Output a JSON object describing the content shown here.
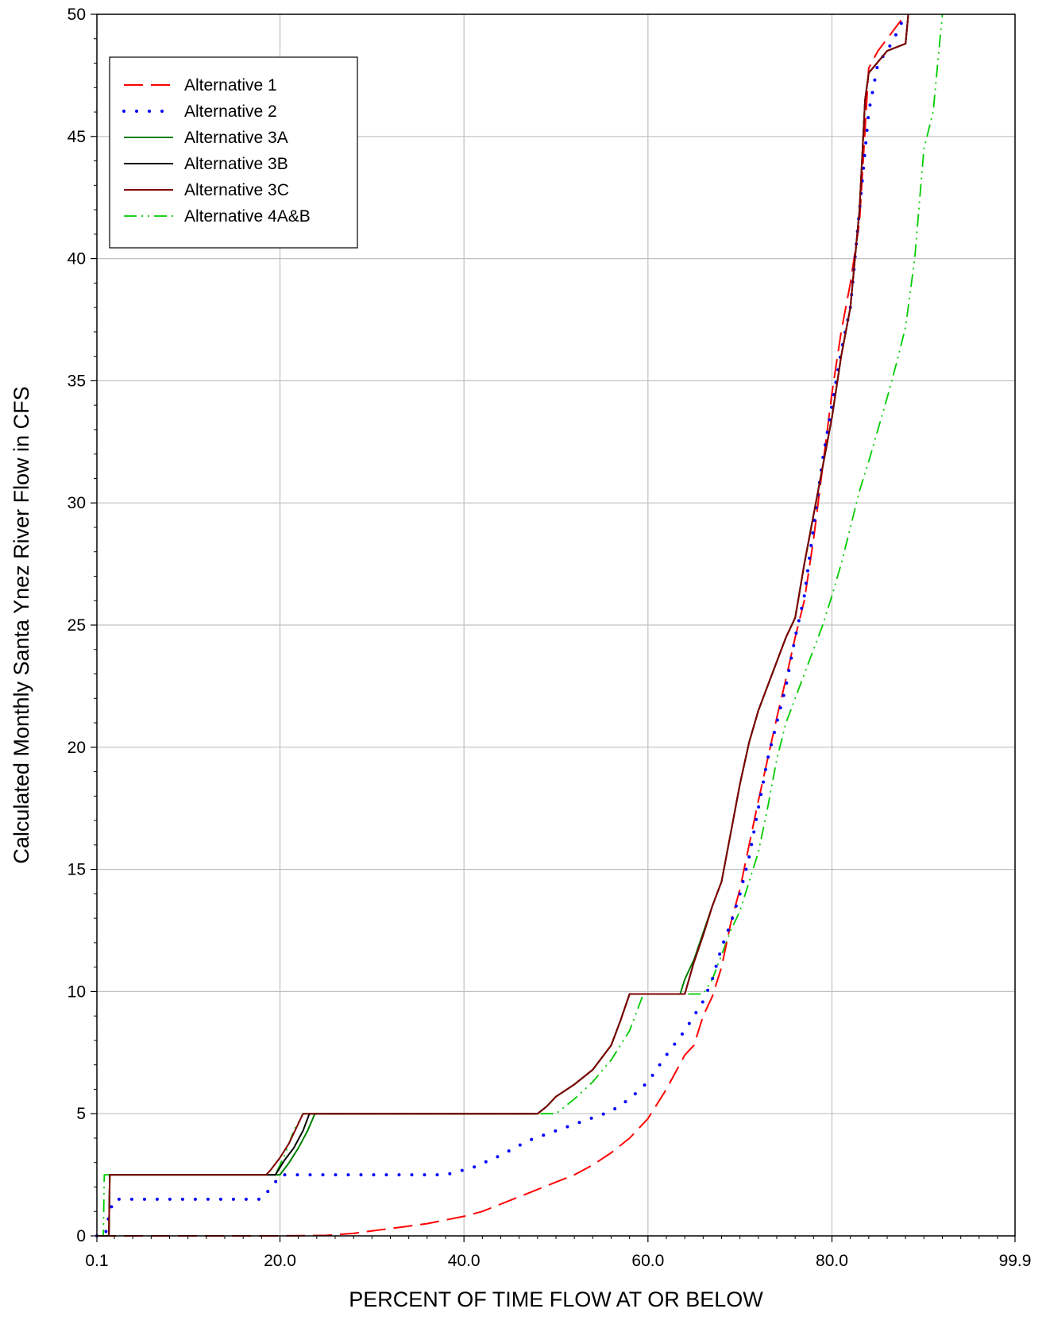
{
  "chart_data": {
    "type": "line",
    "title": "",
    "xlabel": "PERCENT OF TIME FLOW AT OR BELOW",
    "ylabel": "Calculated Monthly Santa Ynez River Flow in CFS",
    "xlim": [
      0.1,
      99.9
    ],
    "ylim": [
      0,
      50
    ],
    "xticks": [
      0.1,
      20,
      40,
      60,
      80,
      99.9
    ],
    "xtick_labels": [
      "0.1",
      "20.0",
      "40.0",
      "60.0",
      "80.0",
      "99.9"
    ],
    "yticks": [
      0,
      5,
      10,
      15,
      20,
      25,
      30,
      35,
      40,
      45,
      50
    ],
    "ytick_labels": [
      "0",
      "5",
      "10",
      "15",
      "20",
      "25",
      "30",
      "35",
      "40",
      "45",
      "50"
    ],
    "grid": true,
    "legend_position": "top-left",
    "series": [
      {
        "name": "Alternative 1",
        "color": "#ff0000",
        "style": "long-dash",
        "x": [
          0.1,
          2,
          5,
          10,
          15,
          20,
          25,
          28,
          30,
          32,
          34,
          36,
          38,
          40,
          42,
          44,
          46,
          48,
          50,
          52,
          54,
          56,
          58,
          60,
          62,
          64,
          65,
          66,
          67,
          68,
          69,
          70,
          71,
          72,
          73,
          74,
          75,
          76,
          77,
          78,
          79,
          80,
          81,
          82,
          83,
          84,
          85,
          86,
          87,
          88
        ],
        "y": [
          0,
          0,
          0,
          0,
          0,
          0,
          0.02,
          0.1,
          0.2,
          0.3,
          0.4,
          0.5,
          0.65,
          0.8,
          1.0,
          1.3,
          1.6,
          1.9,
          2.2,
          2.5,
          2.9,
          3.4,
          4.0,
          4.8,
          6.0,
          7.4,
          7.8,
          9.0,
          9.8,
          11.0,
          12.8,
          14.2,
          16.0,
          17.8,
          19.5,
          21.2,
          22.8,
          24.5,
          26.0,
          28.5,
          31.5,
          34.5,
          37.0,
          39.0,
          41.5,
          47.8,
          48.5,
          49.0,
          49.5,
          50.0
        ]
      },
      {
        "name": "Alternative 2",
        "color": "#0000ff",
        "style": "dotted",
        "x": [
          0.1,
          1,
          1.5,
          2,
          18,
          19.5,
          20,
          30,
          38,
          41,
          44,
          47,
          50,
          53,
          56,
          58,
          60,
          62,
          64,
          66,
          67,
          68,
          69,
          70,
          71,
          72,
          73,
          74,
          75,
          76,
          77,
          78,
          79,
          80,
          81,
          82,
          83,
          84,
          85,
          86,
          87,
          88
        ],
        "y": [
          0,
          0,
          1.0,
          1.5,
          1.5,
          2.2,
          2.5,
          2.5,
          2.5,
          2.8,
          3.3,
          3.9,
          4.3,
          4.7,
          5.1,
          5.6,
          6.3,
          7.4,
          8.4,
          9.6,
          10.5,
          11.8,
          12.8,
          14.0,
          15.5,
          17.5,
          19.5,
          21.0,
          22.5,
          24.5,
          26.2,
          29.0,
          31.8,
          34.0,
          36.2,
          38.0,
          42.0,
          46.0,
          48.0,
          48.5,
          49.2,
          50.0
        ]
      },
      {
        "name": "Alternative 3A",
        "color": "#008000",
        "style": "solid",
        "x": [
          0.1,
          1.4,
          1.5,
          18.5,
          20,
          21,
          22,
          23,
          23.8,
          48,
          49,
          50,
          52,
          54,
          56,
          57,
          58,
          63.5,
          64,
          65,
          66,
          67,
          68,
          69,
          70,
          71,
          72,
          73,
          74,
          75,
          76,
          77,
          78,
          79,
          80,
          81,
          82,
          83,
          83.6,
          84,
          86,
          88,
          88.3
        ],
        "y": [
          0,
          0,
          2.5,
          2.5,
          2.5,
          3.0,
          3.6,
          4.3,
          5.0,
          5.0,
          5.3,
          5.7,
          6.2,
          6.8,
          7.8,
          8.8,
          9.9,
          9.9,
          10.5,
          11.3,
          12.4,
          13.5,
          14.5,
          16.5,
          18.5,
          20.2,
          21.5,
          22.5,
          23.5,
          24.5,
          25.3,
          27.5,
          29.5,
          31.5,
          33.5,
          36.0,
          38.0,
          42.0,
          46.5,
          47.6,
          48.5,
          48.8,
          50.0
        ]
      },
      {
        "name": "Alternative 3B",
        "color": "#000000",
        "style": "solid",
        "x": [
          0.1,
          1.4,
          1.5,
          18.5,
          19.5,
          20.5,
          21.5,
          22.5,
          23.2,
          48,
          49,
          50,
          52,
          54,
          56,
          57,
          58,
          64,
          65,
          66,
          67,
          68,
          69,
          70,
          71,
          72,
          73,
          74,
          75,
          76,
          77,
          78,
          79,
          80,
          81,
          82,
          83,
          83.6,
          84,
          86,
          88,
          88.3
        ],
        "y": [
          0,
          0,
          2.5,
          2.5,
          2.5,
          3.1,
          3.6,
          4.3,
          5.0,
          5.0,
          5.3,
          5.7,
          6.2,
          6.8,
          7.8,
          8.8,
          9.9,
          9.9,
          11.2,
          12.3,
          13.5,
          14.5,
          16.5,
          18.5,
          20.2,
          21.5,
          22.5,
          23.5,
          24.5,
          25.3,
          27.5,
          29.5,
          31.5,
          33.5,
          36.0,
          38.0,
          42.0,
          46.5,
          47.6,
          48.5,
          48.8,
          50.0
        ]
      },
      {
        "name": "Alternative 3C",
        "color": "#800000",
        "style": "solid",
        "x": [
          0.1,
          1.4,
          1.5,
          18.5,
          19,
          20,
          21,
          22,
          22.5,
          48,
          49,
          50,
          52,
          54,
          56,
          57,
          58,
          64,
          65,
          66,
          67,
          68,
          69,
          70,
          71,
          72,
          73,
          74,
          75,
          76,
          77,
          78,
          79,
          80,
          81,
          82,
          83,
          83.6,
          84,
          86,
          88,
          88.3
        ],
        "y": [
          0,
          0,
          2.5,
          2.5,
          2.7,
          3.2,
          3.8,
          4.6,
          5.0,
          5.0,
          5.3,
          5.7,
          6.2,
          6.8,
          7.8,
          8.8,
          9.9,
          9.9,
          11.2,
          12.3,
          13.5,
          14.5,
          16.5,
          18.5,
          20.2,
          21.5,
          22.5,
          23.5,
          24.5,
          25.3,
          27.5,
          29.5,
          31.5,
          33.5,
          36.0,
          38.0,
          42.0,
          46.5,
          47.6,
          48.5,
          48.8,
          50.0
        ]
      },
      {
        "name": "Alternative 4A&B",
        "color": "#00cc00",
        "style": "dash-dot-dot",
        "x": [
          0.1,
          0.8,
          0.9,
          19.5,
          20.5,
          21.5,
          22.5,
          50,
          52,
          54,
          56,
          58,
          59.5,
          66,
          67,
          68,
          69,
          70,
          71,
          72,
          73,
          74,
          75,
          76,
          77,
          78,
          79,
          80,
          81,
          82,
          83,
          84,
          85,
          86,
          87,
          88,
          89,
          90,
          91,
          91.5,
          92
        ],
        "y": [
          0,
          0,
          2.5,
          2.5,
          3.3,
          4.3,
          5.0,
          5.0,
          5.6,
          6.3,
          7.2,
          8.4,
          9.9,
          9.9,
          10.5,
          11.5,
          12.5,
          13.3,
          14.5,
          15.7,
          17.5,
          19.5,
          21.0,
          22.0,
          23.0,
          24.0,
          25.0,
          26.2,
          27.5,
          29.0,
          30.5,
          31.7,
          33.0,
          34.3,
          35.7,
          37.2,
          40.0,
          44.5,
          46.0,
          48.0,
          50.0
        ]
      }
    ]
  }
}
